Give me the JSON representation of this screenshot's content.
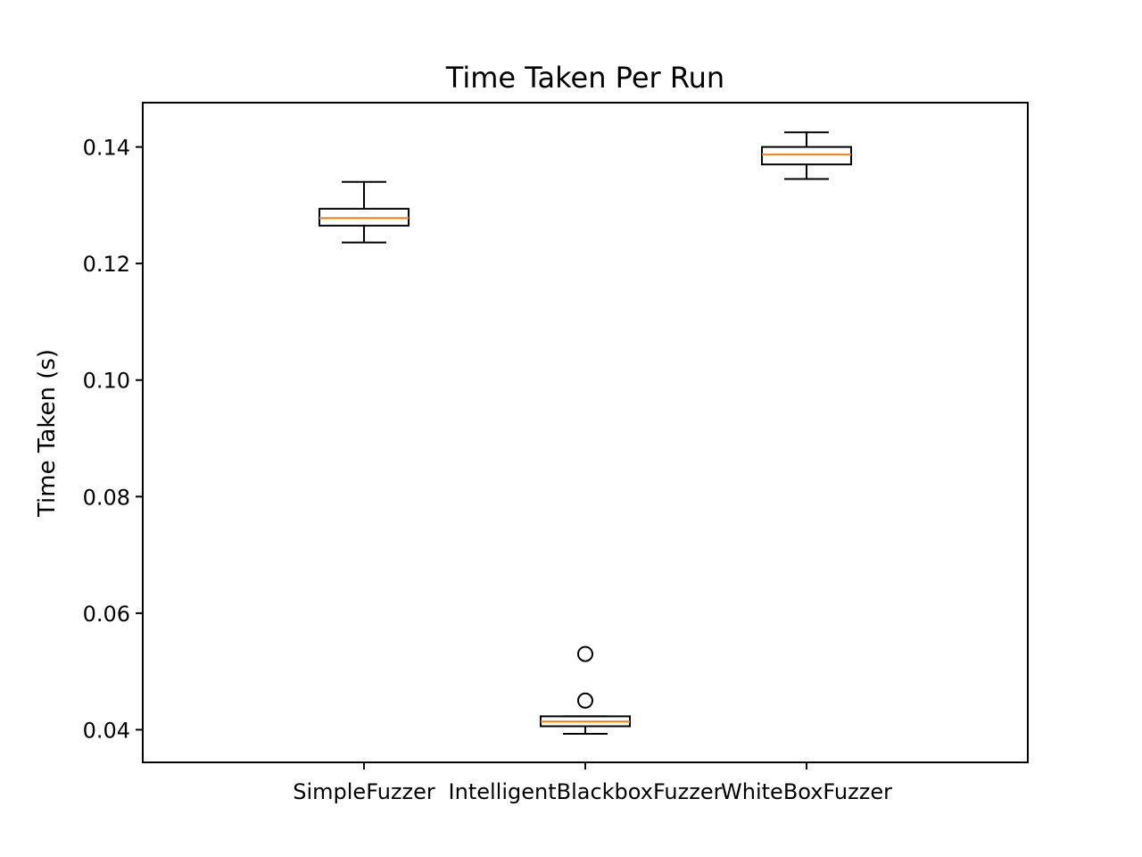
{
  "chart_data": {
    "type": "boxplot",
    "title": "Time Taken Per Run",
    "xlabel": "",
    "ylabel": "Time Taken (s)",
    "ylim": [
      0.0344,
      0.1476
    ],
    "yticks": [
      0.04,
      0.06,
      0.08,
      0.1,
      0.12,
      0.14
    ],
    "ytick_labels": [
      "0.04",
      "0.06",
      "0.08",
      "0.10",
      "0.12",
      "0.14"
    ],
    "grid": false,
    "categories": [
      "SimpleFuzzer",
      "IntelligentBlackboxFuzzer",
      "WhiteBoxFuzzer"
    ],
    "boxes": [
      {
        "whisker_low": 0.1236,
        "q1": 0.1265,
        "median": 0.1278,
        "q3": 0.1294,
        "whisker_high": 0.134,
        "outliers": []
      },
      {
        "whisker_low": 0.0393,
        "q1": 0.0406,
        "median": 0.0414,
        "q3": 0.0423,
        "whisker_high": 0.0423,
        "outliers": [
          0.045,
          0.053
        ]
      },
      {
        "whisker_low": 0.1345,
        "q1": 0.137,
        "median": 0.1387,
        "q3": 0.14,
        "whisker_high": 0.1425,
        "outliers": []
      }
    ],
    "colors": {
      "box": "#000000",
      "median": "#ff7f0e",
      "axes": "#000000"
    }
  }
}
